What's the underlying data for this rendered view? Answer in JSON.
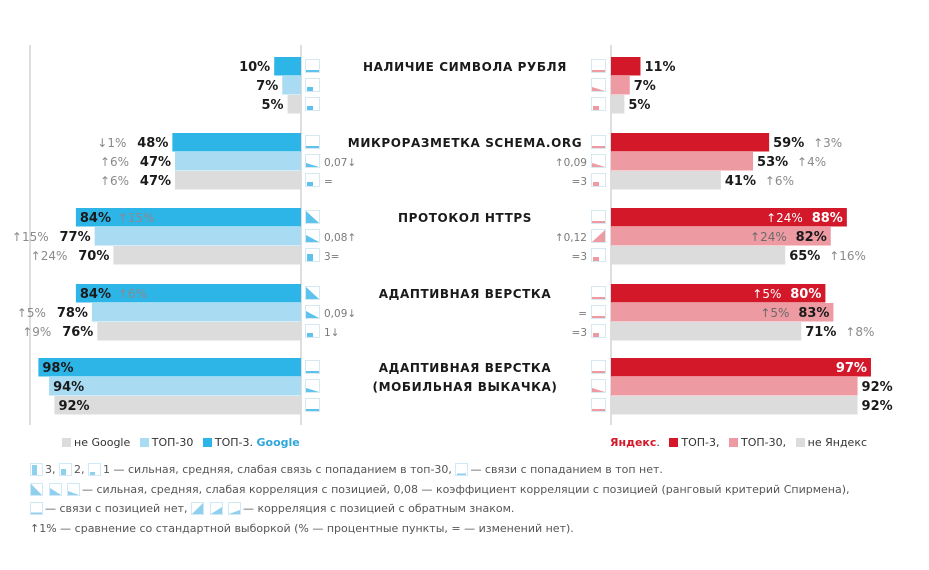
{
  "colors": {
    "google_top3": "#2eb5e8",
    "google_top30": "#a9dcf3",
    "not_google": "#dcdcdc",
    "yandex_top3": "#d3182a",
    "yandex_top30": "#ee9aa3",
    "not_yandex": "#dcdcdc",
    "arrow_text": "#8a8a8a"
  },
  "chart_data": {
    "type": "bar",
    "orientation": "horizontal-mirrored",
    "categories": [
      "НАЛИЧИЕ СИМВОЛА РУБЛЯ",
      "МИКРОРАЗМЕТКА SCHEMA.ORG",
      "ПРОТОКОЛ HTTPS",
      "АДАПТИВНАЯ ВЕРСТКА",
      "АДАПТИВНАЯ ВЕРСТКА (МОБИЛЬНАЯ ВЫКАЧКА)"
    ],
    "category_lines": [
      [
        "НАЛИЧИЕ СИМВОЛА РУБЛЯ"
      ],
      [
        "МИКРОРАЗМЕТКА SCHEMA.ORG"
      ],
      [
        "ПРОТОКОЛ HTTPS"
      ],
      [
        "АДАПТИВНАЯ ВЕРСТКА"
      ],
      [
        "АДАПТИВНАЯ ВЕРСТКА",
        "(МОБИЛЬНАЯ ВЫКАЧКА)"
      ]
    ],
    "unit": "%",
    "google": {
      "series": [
        {
          "name": "ТОП-3",
          "values": [
            10,
            48,
            84,
            84,
            98
          ],
          "labels": [
            "10%",
            "48%",
            "84%",
            "84%",
            "98%"
          ],
          "changes": [
            "",
            "↓1%",
            "↑15%",
            "↑6%",
            ""
          ]
        },
        {
          "name": "ТОП-30",
          "values": [
            7,
            47,
            77,
            78,
            94
          ],
          "labels": [
            "7%",
            "47%",
            "77%",
            "78%",
            "94%"
          ],
          "changes": [
            "",
            "↑6%",
            "↑15%",
            "↑5%",
            ""
          ]
        },
        {
          "name": "не Google",
          "values": [
            5,
            47,
            70,
            76,
            92
          ],
          "labels": [
            "5%",
            "47%",
            "70%",
            "76%",
            "92%"
          ],
          "changes": [
            "",
            "↑6%",
            "↑24%",
            "↑9%",
            ""
          ]
        }
      ],
      "correlation": [
        "",
        "0,07↓",
        "0,08↑",
        "0,09↓",
        ""
      ],
      "link": [
        "",
        "=",
        "3=",
        "1↓",
        ""
      ]
    },
    "yandex": {
      "series": [
        {
          "name": "ТОП-3",
          "values": [
            11,
            59,
            88,
            80,
            97
          ],
          "labels": [
            "11%",
            "59%",
            "88%",
            "80%",
            "97%"
          ],
          "changes": [
            "",
            "↑3%",
            "↑24%",
            "↑5%",
            ""
          ]
        },
        {
          "name": "ТОП-30",
          "values": [
            7,
            53,
            82,
            83,
            92
          ],
          "labels": [
            "7%",
            "53%",
            "82%",
            "83%",
            "92%"
          ],
          "changes": [
            "",
            "↑4%",
            "↑24%",
            "↑5%",
            ""
          ]
        },
        {
          "name": "не Яндекс",
          "values": [
            5,
            41,
            65,
            71,
            92
          ],
          "labels": [
            "5%",
            "41%",
            "65%",
            "71%",
            "92%"
          ],
          "changes": [
            "",
            "↑6%",
            "↑16%",
            "↑8%",
            ""
          ]
        }
      ],
      "correlation": [
        "",
        "↑0,09",
        "↑0,12",
        "=",
        ""
      ],
      "link": [
        "",
        "=3",
        "=3",
        "=3",
        ""
      ]
    },
    "xlim": [
      0,
      100
    ]
  },
  "legend": {
    "google": {
      "not": "не Google",
      "top30": "ТОП-30",
      "top3": "ТОП-3.",
      "brand": "Google"
    },
    "yandex": {
      "brand": "Яндекс",
      "top3": "ТОП-3,",
      "top30": "ТОП-30,",
      "not": "не Яндекс"
    }
  },
  "notes": {
    "line1_a": "3,",
    "line1_b": "2,",
    "line1_c": "1 — сильная, средняя, слабая связь с попаданием в топ-30,",
    "line1_d": "— связи с попаданием в топ нет.",
    "line2": "— сильная, средняя, слабая корреляция с позицией, 0,08 — коэффициент корреляции с позицией (ранговый критерий Спирмена),",
    "line3_a": "— связи с позицией нет,",
    "line3_b": "— корреляция с позицией с обратным знаком.",
    "line4": "↑1% — сравнение со стандартной выборкой (% — процентные пункты, = — изменений нет)."
  }
}
